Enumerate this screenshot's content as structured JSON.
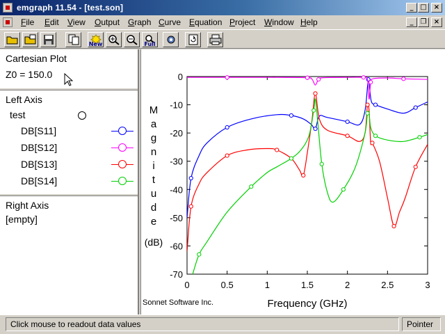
{
  "window": {
    "title": "emgraph 11.54 - [test.son]",
    "icon": "emgraph-app-icon",
    "controls": [
      "minimize",
      "maximize",
      "close"
    ]
  },
  "menubar": {
    "items": [
      "File",
      "Edit",
      "View",
      "Output",
      "Graph",
      "Curve",
      "Equation",
      "Project",
      "Window",
      "Help"
    ]
  },
  "toolbar": {
    "buttons": [
      {
        "name": "open-folder-icon",
        "label": ""
      },
      {
        "name": "open-project-icon",
        "label": ""
      },
      {
        "name": "save-icon",
        "label": ""
      },
      {
        "name": "copy-icon",
        "label": ""
      },
      {
        "name": "new-graph-icon",
        "label": "New"
      },
      {
        "name": "zoom-in-icon",
        "label": ""
      },
      {
        "name": "zoom-out-icon",
        "label": ""
      },
      {
        "name": "zoom-full-icon",
        "label": "Full"
      },
      {
        "name": "settings-icon",
        "label": ""
      },
      {
        "name": "refresh-icon",
        "label": ""
      },
      {
        "name": "print-icon",
        "label": ""
      }
    ]
  },
  "left_panel": {
    "plot_section": {
      "title": "Cartesian Plot",
      "z0": "Z0 = 150.0"
    },
    "left_axis": {
      "title": "Left Axis",
      "group": "test",
      "curves": [
        {
          "label": "DB[S11]",
          "color": "#0000ff"
        },
        {
          "label": "DB[S12]",
          "color": "#ff00ff"
        },
        {
          "label": "DB[S13]",
          "color": "#ff0000"
        },
        {
          "label": "DB[S14]",
          "color": "#00d000"
        }
      ]
    },
    "right_axis": {
      "title": "Right Axis",
      "value": "[empty]"
    }
  },
  "chart_data": {
    "type": "line",
    "xlabel": "Frequency (GHz)",
    "ylabel": "Magnitude",
    "ylabel_unit": "(dB)",
    "credit": "Sonnet Software Inc.",
    "xlim": [
      0,
      3
    ],
    "ylim": [
      -70,
      0
    ],
    "xticks": [
      "0",
      "0.5",
      "1",
      "1.5",
      "2",
      "2.5",
      "3"
    ],
    "yticks": [
      "0",
      "-10",
      "-20",
      "-30",
      "-40",
      "-50",
      "-60",
      "-70"
    ],
    "grid": false,
    "series": [
      {
        "name": "DB[S11]",
        "color": "#0000ff",
        "x": [
          0,
          0.05,
          0.15,
          0.25,
          0.5,
          0.8,
          1.12,
          1.3,
          1.45,
          1.55,
          1.6,
          1.65,
          1.75,
          2.0,
          2.15,
          2.22,
          2.26,
          2.28,
          2.3,
          2.35,
          2.5,
          2.7,
          2.85,
          3.0
        ],
        "y": [
          -50,
          -36,
          -28,
          -23.5,
          -18,
          -15,
          -13.5,
          -13.8,
          -15,
          -17,
          -18.5,
          -14,
          -14.5,
          -16,
          -17,
          -12,
          -1,
          -5,
          -9,
          -10,
          -11.5,
          -13,
          -11,
          -9
        ]
      },
      {
        "name": "DB[S12]",
        "color": "#ff00ff",
        "x": [
          0,
          0.5,
          1.0,
          1.12,
          1.5,
          1.56,
          1.6,
          1.64,
          1.7,
          2.0,
          2.2,
          2.25,
          2.27,
          2.29,
          2.32,
          2.5,
          2.7,
          3.0
        ],
        "y": [
          -0.3,
          -0.3,
          -0.3,
          -0.3,
          -0.4,
          -1,
          -3,
          -1,
          -0.4,
          -0.3,
          -0.3,
          -1,
          -8,
          -2,
          -0.8,
          -0.5,
          -0.8,
          -1
        ]
      },
      {
        "name": "DB[S13]",
        "color": "#ff0000",
        "x": [
          0,
          0.05,
          0.15,
          0.25,
          0.5,
          0.75,
          1.0,
          1.12,
          1.3,
          1.4,
          1.45,
          1.5,
          1.56,
          1.6,
          1.65,
          1.75,
          2.0,
          2.15,
          2.22,
          2.25,
          2.27,
          2.29,
          2.31,
          2.4,
          2.5,
          2.58,
          2.65,
          2.72,
          2.85,
          3.0
        ],
        "y": [
          -62,
          -46,
          -38,
          -34,
          -28,
          -26,
          -25.5,
          -26,
          -29,
          -33,
          -35,
          -27,
          -15,
          -6,
          -15,
          -19,
          -21,
          -23,
          -20,
          -10,
          -12,
          -23.5,
          -23.5,
          -30,
          -43,
          -53,
          -48,
          -43,
          -32,
          -24
        ]
      },
      {
        "name": "DB[S14]",
        "color": "#00d000",
        "x": [
          0.07,
          0.15,
          0.25,
          0.5,
          0.8,
          1.0,
          1.12,
          1.3,
          1.42,
          1.52,
          1.58,
          1.6,
          1.63,
          1.68,
          1.75,
          1.82,
          1.95,
          2.1,
          2.22,
          2.25,
          2.27,
          2.29,
          2.35,
          2.5,
          2.7,
          2.9,
          3.0
        ],
        "y": [
          -70,
          -63,
          -58.5,
          -48,
          -39,
          -34,
          -32,
          -29,
          -26,
          -21,
          -12,
          -8,
          -16,
          -31,
          -41,
          -44.5,
          -40,
          -32,
          -20,
          -13,
          -13,
          -18,
          -21,
          -22.5,
          -23,
          -21.5,
          -20.5
        ]
      }
    ]
  },
  "status": {
    "message": "Click mouse to readout data values",
    "mode": "Pointer"
  }
}
